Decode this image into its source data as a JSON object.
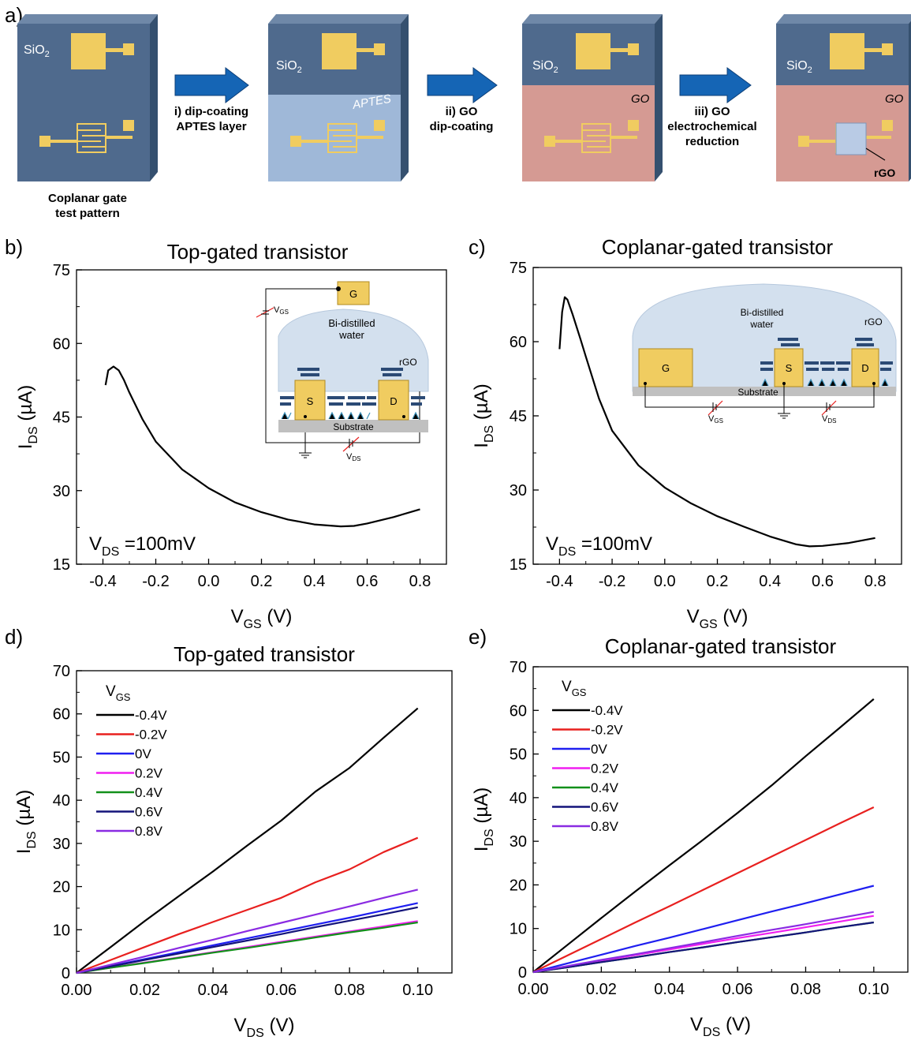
{
  "panel_labels": {
    "a": "a)",
    "b": "b)",
    "c": "c)",
    "d": "d)",
    "e": "e)"
  },
  "schematic": {
    "substrate_label": "SiO",
    "substrate_sub": "2",
    "step1": {
      "line1": "i) dip-coating",
      "line2": "APTES layer"
    },
    "step2": {
      "line1": "ii) GO",
      "line2": "dip-coating"
    },
    "step3": {
      "line1": "iii) GO",
      "line2": "electrochemical",
      "line3": "reduction"
    },
    "chip1_caption": {
      "line1": "Coplanar gate",
      "line2": "test pattern"
    },
    "aptes_label": "APTES",
    "go_label": "GO",
    "rgo_label": "rGO",
    "colors": {
      "chip": "#4f6a8d",
      "chip_side": "#35506f",
      "gold": "#f0cc60",
      "aptes": "#9fb8d8",
      "go": "#d59a93",
      "arrow": "#1565b5"
    }
  },
  "inset_b": {
    "gate": "G",
    "water": [
      "Bi-distilled",
      "water"
    ],
    "rgo": "rGO",
    "source": "S",
    "drain": "D",
    "substrate": "Substrate",
    "vgs": "V",
    "vgs_sub": "GS",
    "vds": "V",
    "vds_sub": "DS"
  },
  "inset_c": {
    "gate": "G",
    "water": [
      "Bi-distilled",
      "water"
    ],
    "rgo": "rGO",
    "source": "S",
    "drain": "D",
    "substrate": "Substrate",
    "vgs": "V",
    "vgs_sub": "GS",
    "vds": "V",
    "vds_sub": "DS"
  },
  "chart_data": [
    {
      "panel": "b",
      "type": "line",
      "title": "Top-gated transistor",
      "xlabel": "V",
      "xlabel_sub": "GS",
      "xlabel_unit": " (V)",
      "ylabel": "I",
      "ylabel_sub": "DS",
      "ylabel_unit": " (µA)",
      "annotation": "V",
      "annotation_sub": "DS",
      "annotation_rest": " =100mV",
      "xlim": [
        -0.5,
        0.9
      ],
      "ylim": [
        15,
        75
      ],
      "xticks": [
        "-0.4",
        "-0.2",
        "0.0",
        "0.2",
        "0.4",
        "0.6",
        "0.8"
      ],
      "yticks": [
        "15",
        "30",
        "45",
        "60",
        "75"
      ],
      "series": [
        {
          "color": "#000000",
          "x": [
            -0.39,
            -0.38,
            -0.36,
            -0.34,
            -0.32,
            -0.3,
            -0.25,
            -0.2,
            -0.1,
            0.0,
            0.1,
            0.2,
            0.3,
            0.4,
            0.5,
            0.55,
            0.6,
            0.7,
            0.8
          ],
          "y": [
            51.5,
            54.5,
            55.3,
            54.5,
            52.5,
            50,
            44.5,
            40,
            34.3,
            30.5,
            27.6,
            25.6,
            24.1,
            23.1,
            22.7,
            22.8,
            23.3,
            24.6,
            26.2
          ]
        }
      ]
    },
    {
      "panel": "c",
      "type": "line",
      "title": "Coplanar-gated transistor",
      "xlabel": "V",
      "xlabel_sub": "GS",
      "xlabel_unit": " (V)",
      "ylabel": "I",
      "ylabel_sub": "DS",
      "ylabel_unit": " (µA)",
      "annotation": "V",
      "annotation_sub": "DS",
      "annotation_rest": " =100mV",
      "xlim": [
        -0.5,
        0.9
      ],
      "ylim": [
        15,
        75
      ],
      "xticks": [
        "-0.4",
        "-0.2",
        "0.0",
        "0.2",
        "0.4",
        "0.6",
        "0.8"
      ],
      "yticks": [
        "15",
        "30",
        "45",
        "60",
        "75"
      ],
      "series": [
        {
          "color": "#000000",
          "x": [
            -0.4,
            -0.39,
            -0.38,
            -0.37,
            -0.35,
            -0.32,
            -0.3,
            -0.25,
            -0.2,
            -0.1,
            0.0,
            0.1,
            0.2,
            0.3,
            0.4,
            0.5,
            0.55,
            0.6,
            0.7,
            0.8
          ],
          "y": [
            58.5,
            66,
            69,
            68.5,
            65.5,
            60.5,
            57,
            48.5,
            42,
            35,
            30.5,
            27.3,
            24.7,
            22.6,
            20.6,
            19.0,
            18.6,
            18.7,
            19.3,
            20.3
          ]
        }
      ]
    },
    {
      "panel": "d",
      "type": "line",
      "title": "Top-gated transistor",
      "xlabel": "V",
      "xlabel_sub": "DS",
      "xlabel_unit": " (V)",
      "ylabel": "I",
      "ylabel_sub": "DS",
      "ylabel_unit": " (µA)",
      "legend_title": "V",
      "legend_title_sub": "GS",
      "xlim": [
        0,
        0.11
      ],
      "ylim": [
        0,
        70
      ],
      "xticks": [
        "0.00",
        "0.02",
        "0.04",
        "0.06",
        "0.08",
        "0.10"
      ],
      "yticks": [
        "0",
        "10",
        "20",
        "30",
        "40",
        "50",
        "60",
        "70"
      ],
      "x": [
        0,
        0.01,
        0.02,
        0.03,
        0.04,
        0.05,
        0.06,
        0.07,
        0.08,
        0.09,
        0.1
      ],
      "series": [
        {
          "name": "-0.4V",
          "color": "#000000",
          "values": [
            0,
            6,
            12,
            17.8,
            23.5,
            29.5,
            35.3,
            42,
            47.5,
            54.5,
            61.3
          ]
        },
        {
          "name": "-0.2V",
          "color": "#e8201f",
          "values": [
            0,
            3,
            6,
            9,
            11.8,
            14.6,
            17.4,
            21,
            24,
            28,
            31.3
          ]
        },
        {
          "name": "0V",
          "color": "#1f1ff0",
          "values": [
            0,
            1.6,
            3.2,
            4.8,
            6.4,
            8.0,
            9.6,
            11.2,
            12.8,
            14.5,
            16.2
          ]
        },
        {
          "name": "0.2V",
          "color": "#f01ff0",
          "values": [
            0,
            1.2,
            2.4,
            3.6,
            4.8,
            6.0,
            7.2,
            8.4,
            9.6,
            10.8,
            12.0
          ]
        },
        {
          "name": "0.4V",
          "color": "#12901a",
          "values": [
            0,
            1.2,
            2.3,
            3.5,
            4.7,
            5.8,
            7.0,
            8.2,
            9.4,
            10.5,
            11.7
          ]
        },
        {
          "name": "0.6V",
          "color": "#14147a",
          "values": [
            0,
            1.5,
            3.0,
            4.5,
            6.0,
            7.5,
            9.0,
            10.6,
            12.1,
            13.6,
            15.2
          ]
        },
        {
          "name": "0.8V",
          "color": "#8a2be2",
          "values": [
            0,
            1.9,
            3.8,
            5.8,
            7.7,
            9.7,
            11.6,
            13.5,
            15.4,
            17.4,
            19.3
          ]
        }
      ]
    },
    {
      "panel": "e",
      "type": "line",
      "title": "Coplanar-gated transistor",
      "xlabel": "V",
      "xlabel_sub": "DS",
      "xlabel_unit": " (V)",
      "ylabel": "I",
      "ylabel_sub": "DS",
      "ylabel_unit": " (µA)",
      "legend_title": "V",
      "legend_title_sub": "GS",
      "xlim": [
        0,
        0.11
      ],
      "ylim": [
        0,
        70
      ],
      "xticks": [
        "0.00",
        "0.02",
        "0.04",
        "0.06",
        "0.08",
        "0.10"
      ],
      "yticks": [
        "0",
        "10",
        "20",
        "30",
        "40",
        "50",
        "60",
        "70"
      ],
      "x": [
        0,
        0.01,
        0.02,
        0.03,
        0.04,
        0.05,
        0.06,
        0.07,
        0.08,
        0.09,
        0.1
      ],
      "series": [
        {
          "name": "-0.4V",
          "color": "#000000",
          "values": [
            0,
            6.2,
            12.4,
            18.5,
            24.5,
            30.4,
            36.5,
            42.8,
            49.5,
            56,
            62.6
          ]
        },
        {
          "name": "-0.2V",
          "color": "#e8201f",
          "values": [
            0,
            3.8,
            7.6,
            11.4,
            15.1,
            18.9,
            22.7,
            26.5,
            30.3,
            34.1,
            37.8
          ]
        },
        {
          "name": "0V",
          "color": "#1f1ff0",
          "values": [
            0,
            2.0,
            4.0,
            6.0,
            7.9,
            9.9,
            11.9,
            13.9,
            15.8,
            17.8,
            19.8
          ]
        },
        {
          "name": "0.2V",
          "color": "#f01ff0",
          "values": [
            0,
            1.3,
            2.6,
            3.9,
            5.2,
            6.5,
            7.8,
            9.0,
            10.3,
            11.6,
            12.9
          ]
        },
        {
          "name": "0.4V",
          "color": "#12901a",
          "values": [
            0,
            1.1,
            2.3,
            3.4,
            4.6,
            5.7,
            6.9,
            8.0,
            9.1,
            10.3,
            11.4
          ]
        },
        {
          "name": "0.6V",
          "color": "#14147a",
          "values": [
            0,
            1.1,
            2.3,
            3.4,
            4.6,
            5.7,
            6.9,
            8.0,
            9.1,
            10.3,
            11.4
          ]
        },
        {
          "name": "0.8V",
          "color": "#8a2be2",
          "values": [
            0,
            1.4,
            2.8,
            4.1,
            5.5,
            6.9,
            8.3,
            9.7,
            11.0,
            12.4,
            13.8
          ]
        }
      ]
    }
  ]
}
